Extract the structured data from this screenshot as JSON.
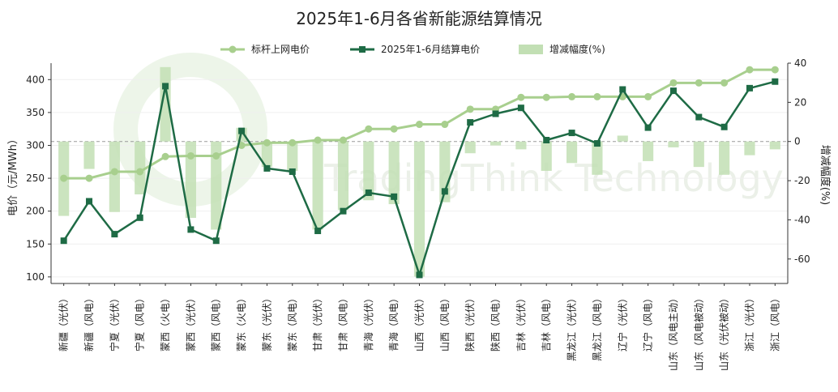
{
  "chart_data": {
    "type": "line",
    "title": "2025年1-6月各省新能源结算情况",
    "ylabel": "电价（元/MWh）",
    "y2label": "增减幅度(%)",
    "ylim": [
      90,
      425
    ],
    "y2lim": [
      -72.5,
      40
    ],
    "yticks": [
      100,
      150,
      200,
      250,
      300,
      350,
      400
    ],
    "y2ticks": [
      -60,
      -40,
      -20,
      0,
      20,
      40
    ],
    "legend_position": "top-center",
    "watermark": "TradingThink Technology",
    "categories": [
      "新疆（光伏）",
      "新疆（风电）",
      "宁夏（光伏）",
      "宁夏（风电）",
      "蒙西（火电）",
      "蒙西（光伏）",
      "蒙西（风电）",
      "蒙东（火电）",
      "蒙东（光伏）",
      "蒙东（风电）",
      "甘肃（光伏）",
      "甘肃（风电）",
      "青海（光伏）",
      "青海（风电）",
      "山西（光伏）",
      "山西（风电）",
      "陕西（光伏）",
      "陕西（风电）",
      "吉林（光伏）",
      "吉林（风电）",
      "黑龙江（光伏）",
      "黑龙江（风电）",
      "辽宁（光伏）",
      "辽宁（风电）",
      "山东（风电主动）",
      "山东（风电被动）",
      "山东（光伏被动）",
      "浙江（光伏）",
      "浙江（风电）"
    ],
    "series": [
      {
        "name": "标杆上网电价",
        "type": "line",
        "axis": "left",
        "color": "#a8cf8e",
        "marker": "circle",
        "values": [
          250,
          250,
          260,
          260,
          283,
          284,
          284,
          300,
          304,
          304,
          308,
          308,
          325,
          325,
          332,
          332,
          355,
          355,
          373,
          373,
          374,
          374,
          374,
          374,
          395,
          395,
          395,
          415,
          415
        ]
      },
      {
        "name": "2025年1-6月结算电价",
        "type": "line",
        "axis": "left",
        "color": "#1e6b45",
        "marker": "square",
        "values": [
          155,
          215,
          165,
          190,
          390,
          172,
          155,
          322,
          265,
          260,
          170,
          200,
          228,
          222,
          103,
          230,
          335,
          348,
          357,
          308,
          319,
          303,
          385,
          327,
          383,
          343,
          328,
          387,
          397
        ]
      },
      {
        "name": "增减幅度(%)",
        "type": "bar",
        "axis": "right",
        "color": "#c2dfb4",
        "values": [
          -38,
          -14,
          -36,
          -27,
          38,
          -39,
          -45,
          7,
          -13,
          -15,
          -45,
          -35,
          -30,
          -32,
          -69,
          -31,
          -6,
          -2,
          -4,
          -15,
          -11,
          -17,
          3,
          -10,
          -3,
          -13,
          -17,
          -7,
          -4
        ]
      }
    ]
  }
}
